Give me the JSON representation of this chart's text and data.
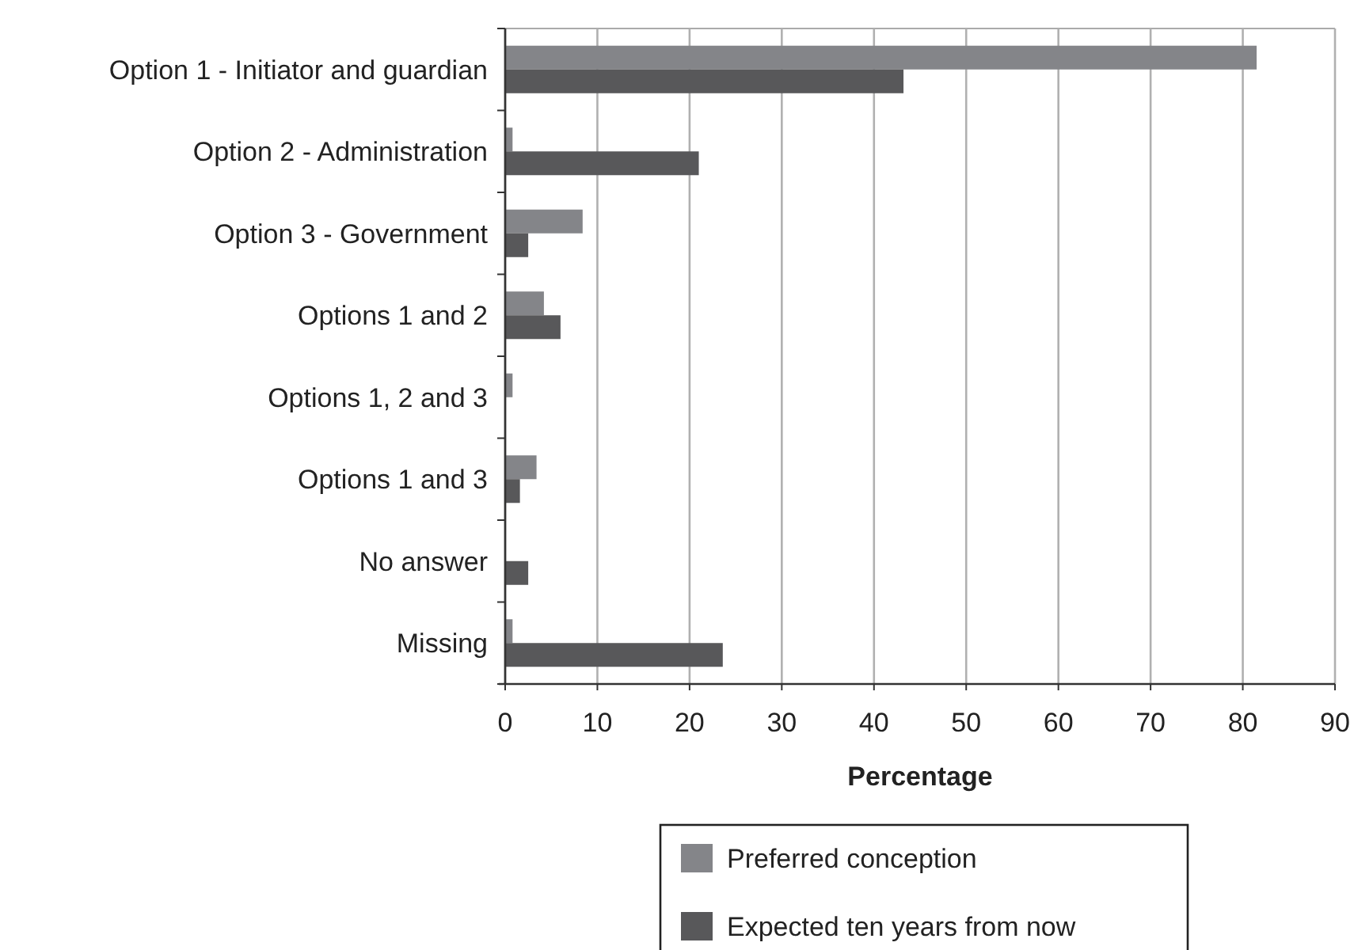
{
  "chart_data": {
    "type": "bar",
    "orientation": "horizontal",
    "xlabel": "Percentage",
    "categories": [
      "Option 1 - Initiator and guardian",
      "Option 2 - Administration",
      "Option 3 - Government",
      "Options 1 and 2",
      "Options 1, 2 and 3",
      "Options 1 and 3",
      "No answer",
      "Missing"
    ],
    "series": [
      {
        "name": "Preferred conception",
        "color": "#848589",
        "values": [
          81.5,
          0.8,
          8.4,
          4.2,
          0.8,
          3.4,
          0,
          0.8
        ]
      },
      {
        "name": "Expected ten years from now",
        "color": "#58585a",
        "values": [
          43.2,
          21.0,
          2.5,
          6.0,
          0,
          1.6,
          2.5,
          23.6
        ]
      }
    ],
    "xlim": [
      0,
      90
    ],
    "xticks": [
      0,
      10,
      20,
      30,
      40,
      50,
      60,
      70,
      80,
      90
    ],
    "grid": "x",
    "legend": "bottom"
  }
}
